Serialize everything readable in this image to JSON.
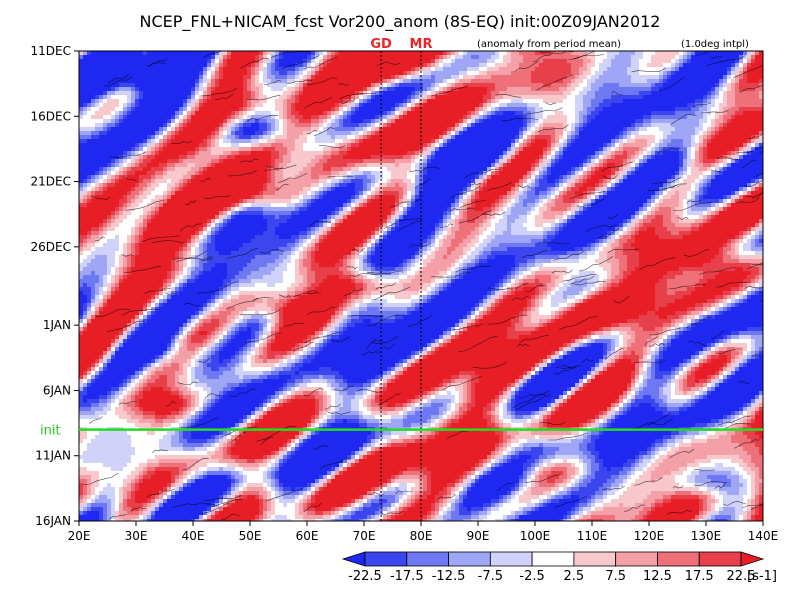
{
  "chart_data": {
    "type": "heatmap",
    "title": "NCEP_FNL+NICAM_fcst Vor200_anom (8S-EQ) init:00Z09JAN2012",
    "note_left": "(anomaly from period mean)",
    "note_right": "(1.0deg intpl)",
    "x_range": [
      20,
      140
    ],
    "x_ticks": [
      "20E",
      "30E",
      "40E",
      "50E",
      "60E",
      "70E",
      "80E",
      "90E",
      "100E",
      "110E",
      "120E",
      "130E",
      "140E"
    ],
    "y_range_days": [
      0,
      36
    ],
    "y_ticks": [
      {
        "label": "11DEC",
        "day": 0
      },
      {
        "label": "16DEC",
        "day": 5
      },
      {
        "label": "21DEC",
        "day": 10
      },
      {
        "label": "26DEC",
        "day": 15
      },
      {
        "label": "1JAN",
        "day": 21
      },
      {
        "label": "6JAN",
        "day": 26
      },
      {
        "label": "11JAN",
        "day": 31
      },
      {
        "label": "16JAN",
        "day": 36
      }
    ],
    "init_line": {
      "label": "init",
      "day": 29,
      "color": "#22dd22"
    },
    "markers": [
      {
        "label": "GD",
        "lon": 73
      },
      {
        "label": "MR",
        "lon": 80
      }
    ],
    "colorbar": {
      "levels": [
        "-22.5",
        "-17.5",
        "-12.5",
        "-7.5",
        "-2.5",
        "2.5",
        "7.5",
        "12.5",
        "17.5",
        "22.5"
      ],
      "unit": "[s-1]",
      "colors": [
        "#1e28f0",
        "#3c46ef",
        "#6e78f2",
        "#a0a6f6",
        "#d0d2fa",
        "#ffffff",
        "#f8c8cc",
        "#f4a0a8",
        "#ee7078",
        "#e8404a",
        "#e81e26"
      ]
    },
    "features": [
      {
        "kind": "positive",
        "lon": 52,
        "day": 11,
        "strength": 1.0
      },
      {
        "kind": "positive",
        "lon": 70,
        "day": 18,
        "strength": 0.9
      },
      {
        "kind": "positive",
        "lon": 55,
        "day": 19.5,
        "strength": 0.95
      },
      {
        "kind": "positive",
        "lon": 35,
        "day": 27,
        "strength": 0.9
      },
      {
        "kind": "positive",
        "lon": 100,
        "day": 32,
        "strength": 0.9
      },
      {
        "kind": "positive",
        "lon": 75,
        "day": 1,
        "strength": 0.7
      },
      {
        "kind": "positive",
        "lon": 130,
        "day": 16,
        "strength": 0.6
      },
      {
        "kind": "positive",
        "lon": 110,
        "day": 20,
        "strength": 0.6
      },
      {
        "kind": "negative",
        "lon": 50,
        "day": 6,
        "strength": 1.0
      },
      {
        "kind": "negative",
        "lon": 35,
        "day": 23,
        "strength": 0.8
      },
      {
        "kind": "negative",
        "lon": 132,
        "day": 33,
        "strength": 1.0
      },
      {
        "kind": "negative",
        "lon": 30,
        "day": 2,
        "strength": 0.7
      },
      {
        "kind": "negative",
        "lon": 90,
        "day": 8,
        "strength": 0.6
      },
      {
        "kind": "negative",
        "lon": 125,
        "day": 9,
        "strength": 0.6
      }
    ]
  }
}
